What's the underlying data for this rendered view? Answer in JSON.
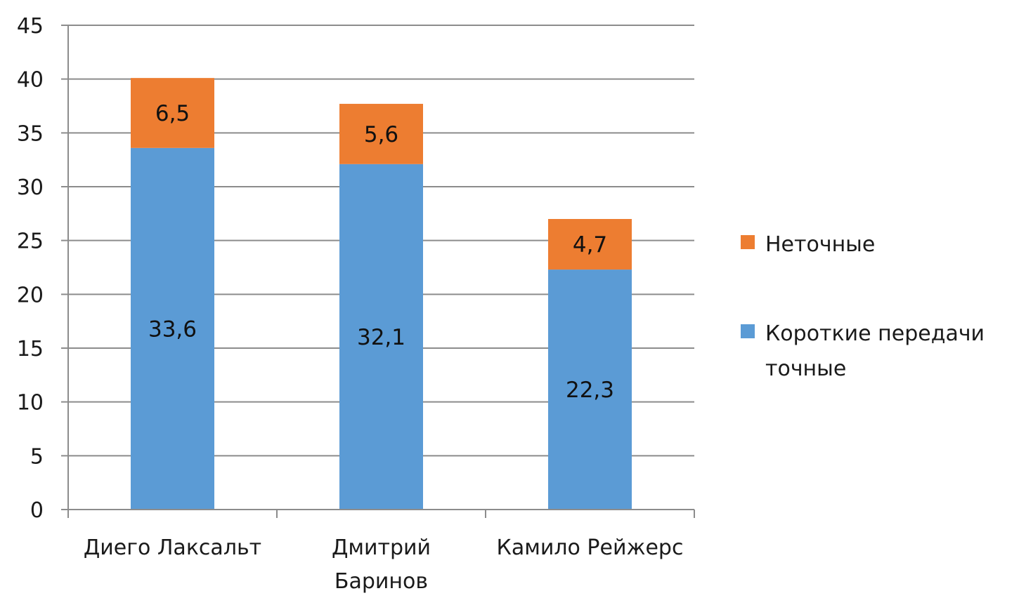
{
  "chart_data": {
    "type": "bar",
    "stacked": true,
    "categories": [
      [
        "Диего Лаксальт"
      ],
      [
        "Дмитрий",
        "Баринов"
      ],
      [
        "Камило Рейжерс"
      ]
    ],
    "series": [
      {
        "name": "Короткие передачи точные",
        "values": [
          33.6,
          32.1,
          22.3
        ],
        "labels": [
          "33,6",
          "32,1",
          "22,3"
        ],
        "color": "#5b9bd5"
      },
      {
        "name": "Неточные",
        "values": [
          6.5,
          5.6,
          4.7
        ],
        "labels": [
          "6,5",
          "5,6",
          "4,7"
        ],
        "color": "#ed7d31"
      }
    ],
    "ylim": [
      0,
      45
    ],
    "yticks": [
      0,
      5,
      10,
      15,
      20,
      25,
      30,
      35,
      40,
      45
    ],
    "grid": true,
    "legend": {
      "position": "right",
      "entries": [
        {
          "lines": [
            "Неточные"
          ],
          "color": "#ed7d31"
        },
        {
          "lines": [
            "Короткие передачи",
            "точные"
          ],
          "color": "#5b9bd5"
        }
      ]
    },
    "title": "",
    "xlabel": "",
    "ylabel": ""
  }
}
